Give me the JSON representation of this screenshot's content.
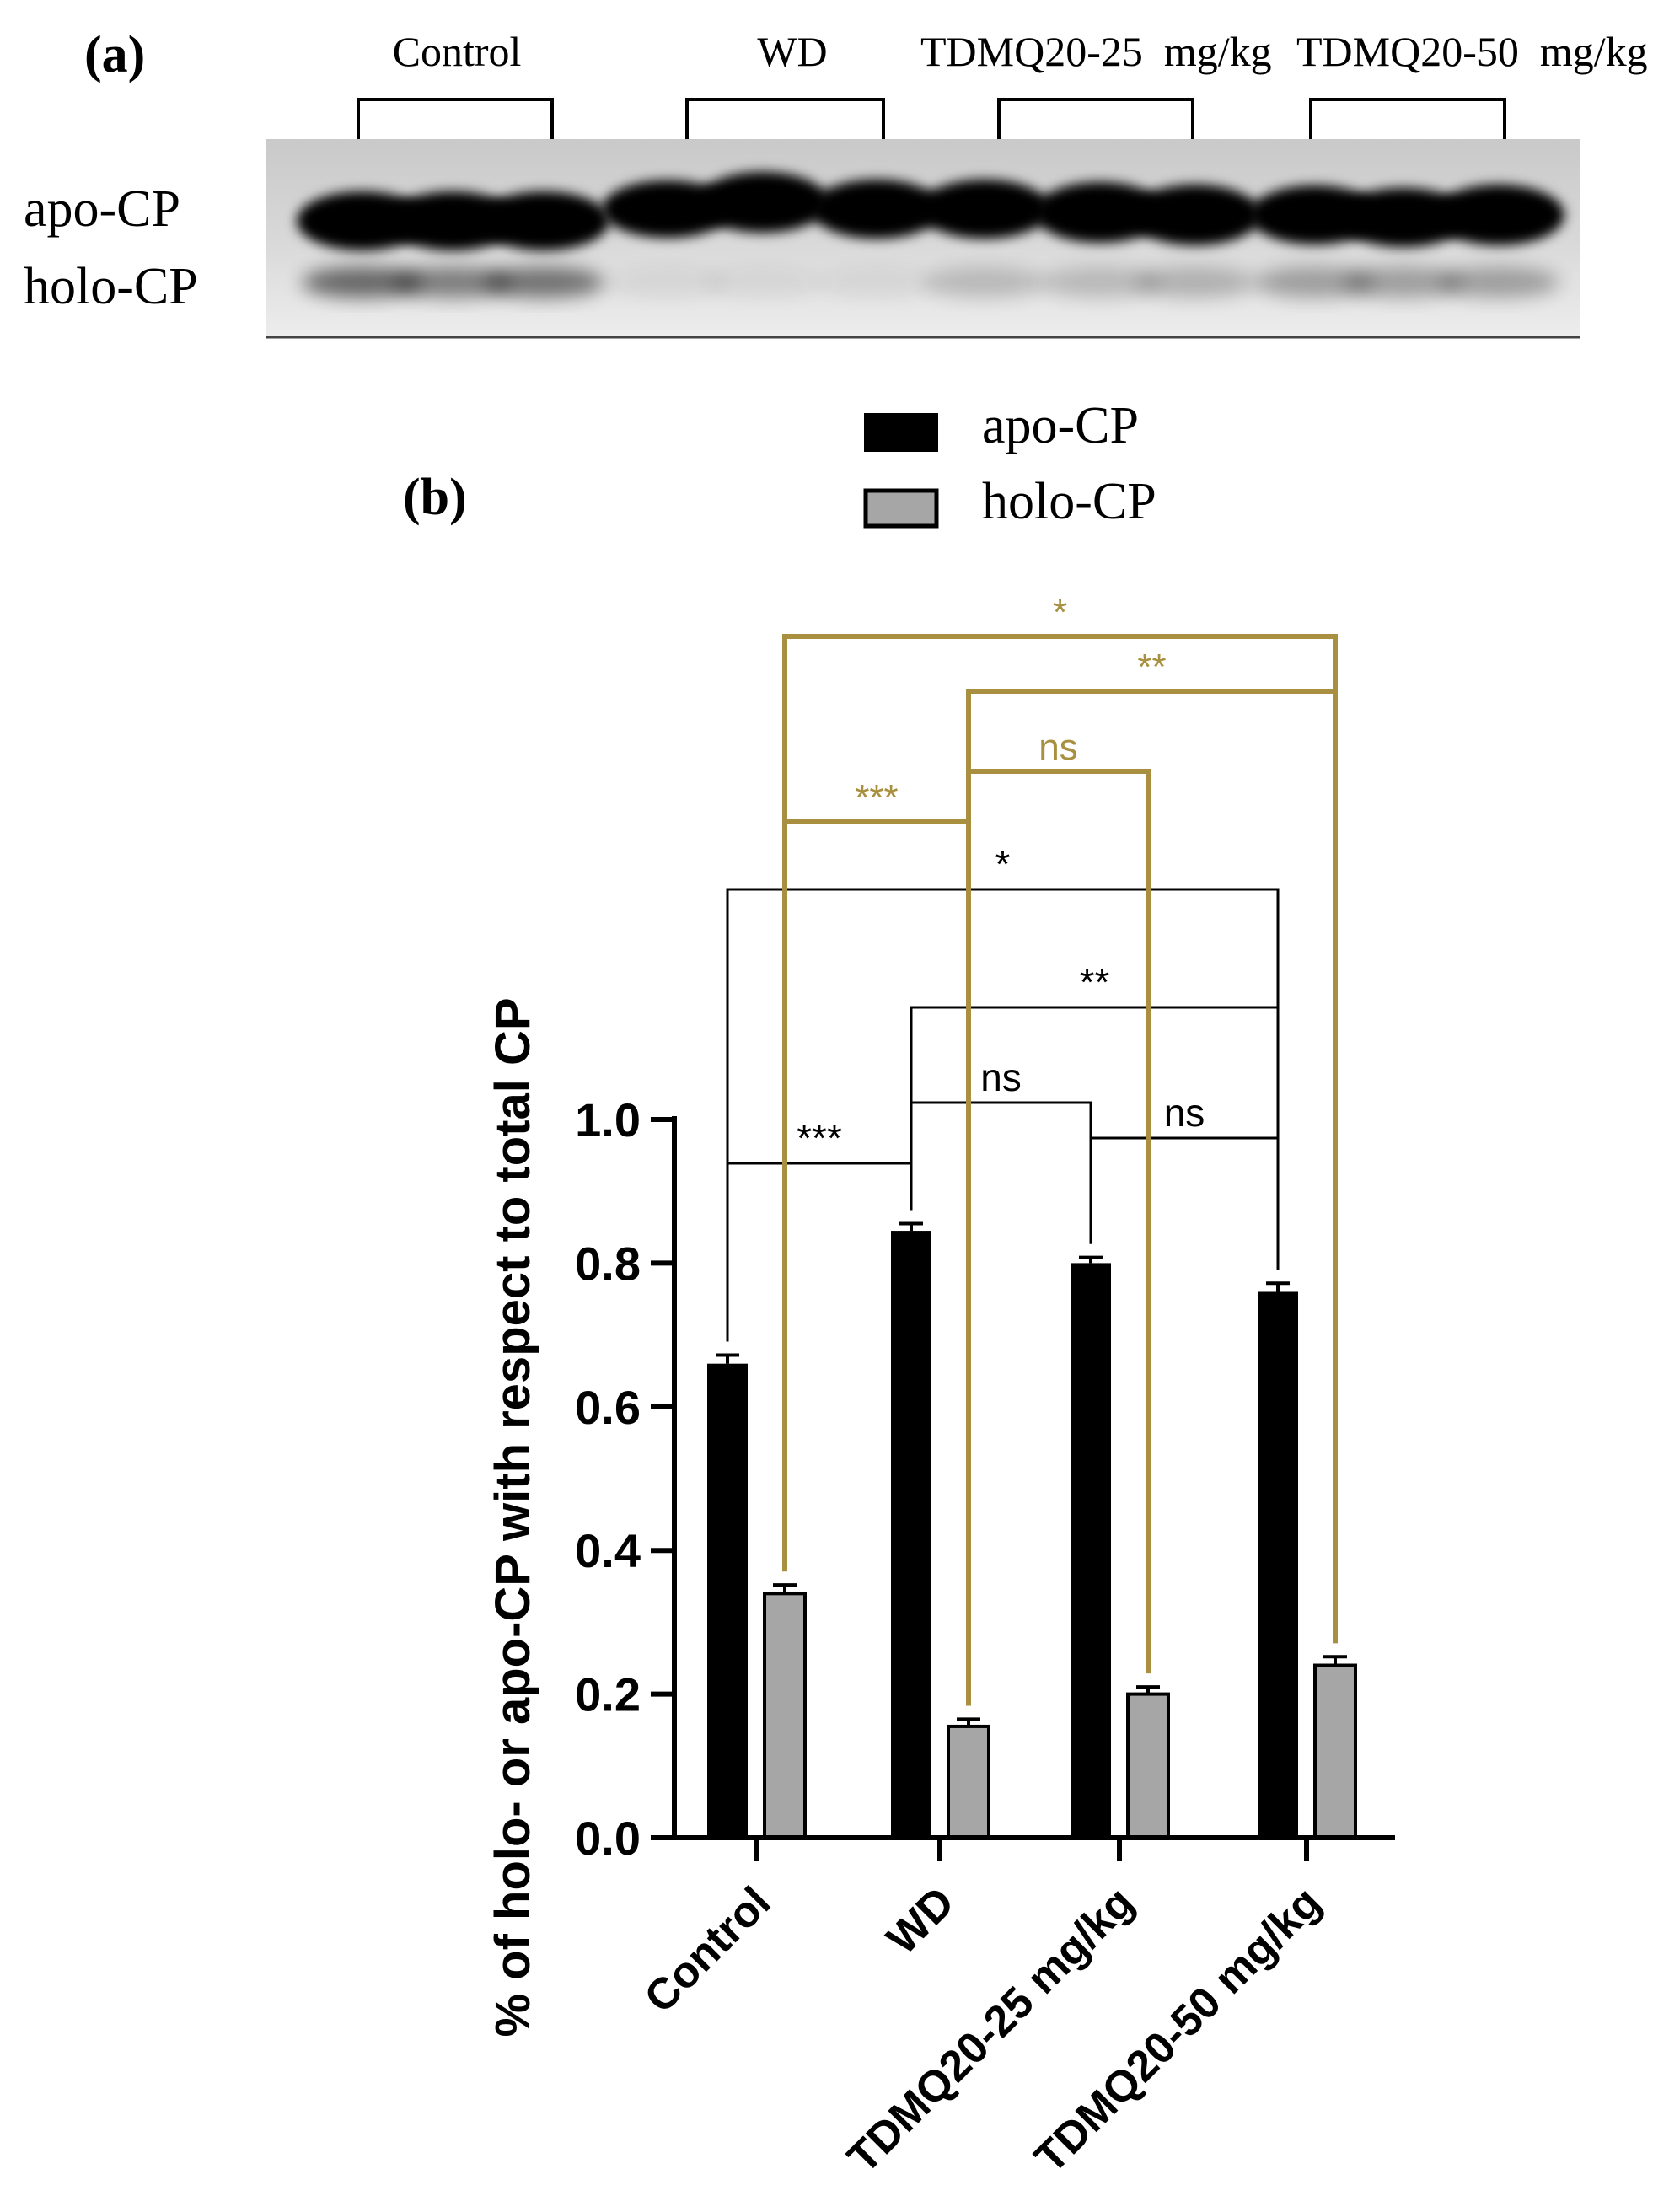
{
  "panel_a": {
    "label": "(a)",
    "groups": [
      "Control",
      "WD",
      "TDMQ20-25  mg/kg",
      "TDMQ20-50  mg/kg"
    ],
    "band_labels": [
      "apo-CP",
      "holo-CP"
    ]
  },
  "panel_b": {
    "label": "(b)"
  },
  "chart_data": {
    "type": "bar",
    "categories": [
      "Control",
      "WD",
      "TDMQ20-25 mg/kg",
      "TDMQ20-50 mg/kg"
    ],
    "series": [
      {
        "name": "apo-CP",
        "values": [
          0.66,
          0.845,
          0.8,
          0.76
        ],
        "errors": [
          0.012,
          0.01,
          0.008,
          0.012
        ],
        "color": "#000000"
      },
      {
        "name": "holo-CP",
        "values": [
          0.34,
          0.155,
          0.2,
          0.24
        ],
        "errors": [
          0.012,
          0.01,
          0.01,
          0.012
        ],
        "color": "#a6a6a6"
      }
    ],
    "ylabel": "% of holo- or apo-CP with respect to total CP",
    "ylim": [
      0,
      1.0
    ],
    "yticks": [
      "0.0",
      "0.2",
      "0.4",
      "0.6",
      "0.8",
      "1.0"
    ],
    "grid": false,
    "legend": "top-center",
    "significance": {
      "apo": [
        {
          "from": "Control",
          "to": "WD",
          "label": "***"
        },
        {
          "from": "WD",
          "to": "TDMQ20-25 mg/kg",
          "label": "ns"
        },
        {
          "from": "TDMQ20-25 mg/kg",
          "to": "TDMQ20-50 mg/kg",
          "label": "ns"
        },
        {
          "from": "WD",
          "to": "TDMQ20-50 mg/kg",
          "label": "**"
        },
        {
          "from": "Control",
          "to": "TDMQ20-50 mg/kg",
          "label": "*"
        }
      ],
      "holo": [
        {
          "from": "Control",
          "to": "WD",
          "label": "***"
        },
        {
          "from": "WD",
          "to": "TDMQ20-25 mg/kg",
          "label": "ns"
        },
        {
          "from": "WD",
          "to": "TDMQ20-50 mg/kg",
          "label": "**"
        },
        {
          "from": "Control",
          "to": "TDMQ20-50 mg/kg",
          "label": "*"
        }
      ]
    },
    "colors": {
      "apo_bracket": "#000000",
      "holo_bracket": "#a89040"
    }
  }
}
